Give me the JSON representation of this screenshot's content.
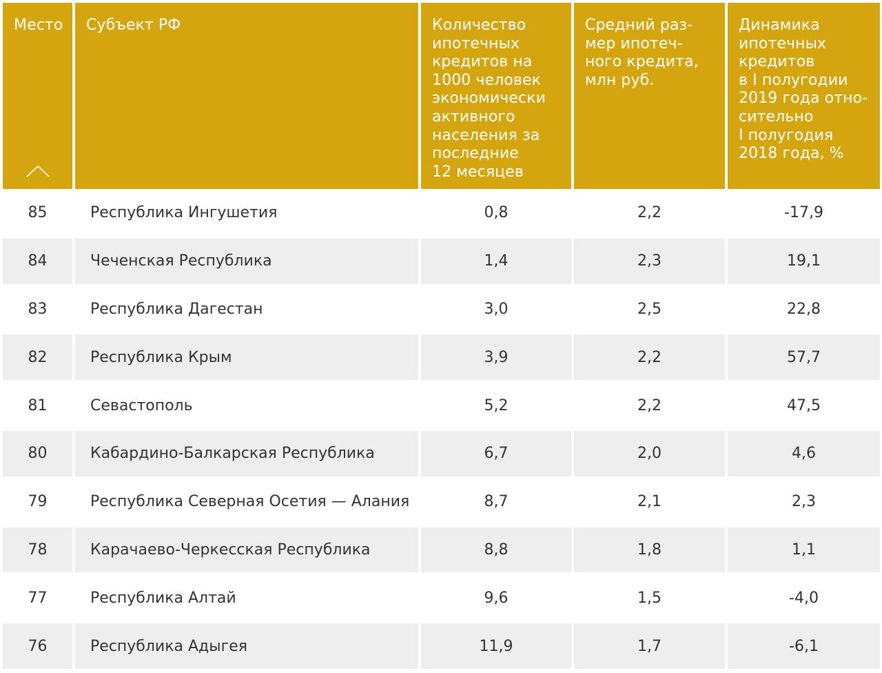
{
  "table": {
    "headers": {
      "rank": "Место",
      "subject": "Субъект РФ",
      "loans_per_1000_lines": [
        "Количество",
        "ипотечных",
        "кредитов на",
        "1000 человек",
        "экономически",
        "активного",
        "населения за",
        "последние",
        "12 месяцев"
      ],
      "avg_size_lines": [
        "Средний раз-",
        "мер ипотеч-",
        "ного кредита,",
        "млн руб."
      ],
      "dynamics_lines": [
        "Динамика",
        "ипотечных",
        "кредитов",
        "в I полугодии",
        "2019 года отно-",
        "сительно",
        "I полугодия",
        "2018 года, %"
      ]
    },
    "sort_icon": "chevron-up-icon",
    "header_color": "#d4a50f",
    "stripe_color": "#eeeeee",
    "rows": [
      {
        "rank": "85",
        "subject": "Республика Ингушетия",
        "loans": "0,8",
        "avg": "2,2",
        "dyn": "-17,9"
      },
      {
        "rank": "84",
        "subject": "Чеченская Республика",
        "loans": "1,4",
        "avg": "2,3",
        "dyn": "19,1"
      },
      {
        "rank": "83",
        "subject": "Республика Дагестан",
        "loans": "3,0",
        "avg": "2,5",
        "dyn": "22,8"
      },
      {
        "rank": "82",
        "subject": "Республика Крым",
        "loans": "3,9",
        "avg": "2,2",
        "dyn": "57,7"
      },
      {
        "rank": "81",
        "subject": "Севастополь",
        "loans": "5,2",
        "avg": "2,2",
        "dyn": "47,5"
      },
      {
        "rank": "80",
        "subject": "Кабардино-Балкарская Республика",
        "loans": "6,7",
        "avg": "2,0",
        "dyn": "4,6"
      },
      {
        "rank": "79",
        "subject": "Республика Северная Осетия — Алания",
        "loans": "8,7",
        "avg": "2,1",
        "dyn": "2,3"
      },
      {
        "rank": "78",
        "subject": "Карачаево-Черкесская Республика",
        "loans": "8,8",
        "avg": "1,8",
        "dyn": "1,1"
      },
      {
        "rank": "77",
        "subject": "Республика Алтай",
        "loans": "9,6",
        "avg": "1,5",
        "dyn": "-4,0"
      },
      {
        "rank": "76",
        "subject": "Республика Адыгея",
        "loans": "11,9",
        "avg": "1,7",
        "dyn": "-6,1"
      }
    ]
  }
}
